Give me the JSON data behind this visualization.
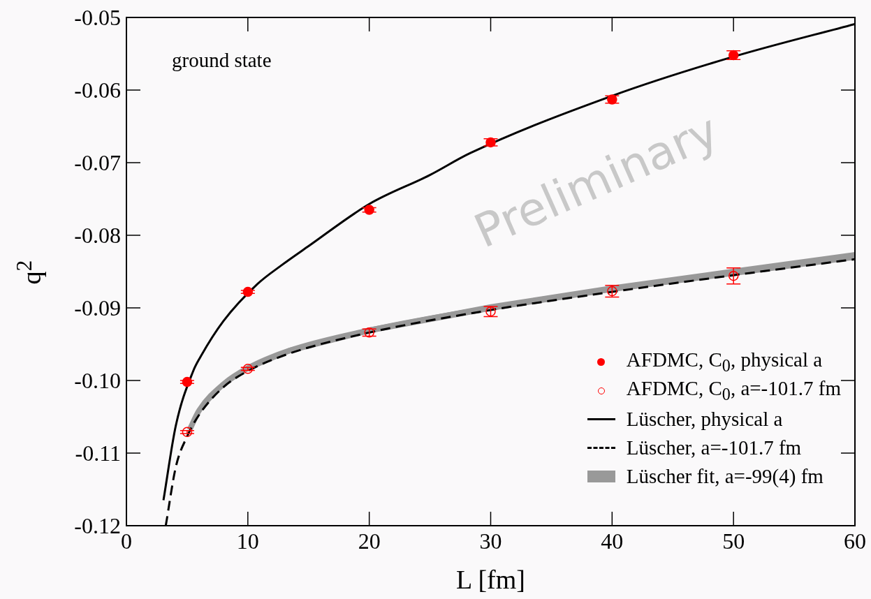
{
  "chart_data": {
    "type": "scatter",
    "xlabel": "L [fm]",
    "ylabel": "q$^{2}$",
    "annotations": [
      "ground state",
      "Preliminary"
    ],
    "xlim": [
      0,
      60
    ],
    "xticks": [
      0,
      10,
      20,
      30,
      40,
      50,
      60
    ],
    "ylim": [
      -0.12,
      -0.05
    ],
    "yticks": [
      -0.12,
      -0.11,
      {
        "value": -0.1,
        "label": "-0.10"
      },
      -0.09,
      -0.08,
      -0.07,
      -0.06,
      -0.05
    ],
    "grid": false,
    "legend": "bottom right",
    "series": [
      {
        "name": "AFDMC, C$_{0}$, physical a",
        "marker": "circle",
        "color": "#ff0000",
        "x": [
          5,
          10,
          20,
          30,
          40,
          50
        ],
        "values": [
          -0.1002,
          -0.0878,
          -0.0765,
          -0.0672,
          -0.0613,
          -0.0552
        ],
        "errors": [
          0.0002,
          0.0002,
          0.0003,
          0.0005,
          0.0005,
          0.0006
        ]
      },
      {
        "name": "AFDMC, C$_{0}$, a=-101.7 fm",
        "marker": "circle-open",
        "color": "#ff0000",
        "x": [
          5,
          10,
          20,
          30,
          40,
          50
        ],
        "values": [
          -0.1071,
          -0.0984,
          -0.0934,
          -0.0905,
          -0.0877,
          -0.0856
        ],
        "errors": [
          0.0002,
          0.0002,
          0.0005,
          0.0007,
          0.0008,
          0.0011
        ]
      },
      {
        "name": "Lüscher, physical a",
        "type": "line",
        "marker": "none",
        "line_style": "solid",
        "color": "#000000",
        "x": [
          3.05,
          4.07,
          5.5,
          6.08,
          8,
          10.8,
          12.8,
          15,
          20,
          25,
          28.3,
          40,
          50,
          60
        ],
        "values": [
          -0.1165,
          -0.1062,
          -0.0987,
          -0.0968,
          -0.0918,
          -0.0867,
          -0.0841,
          -0.0815,
          -0.0757,
          -0.0717,
          -0.0687,
          -0.0608,
          -0.0554,
          -0.0509
        ]
      },
      {
        "name": "Lüscher, a=-101.7 fm",
        "type": "line",
        "marker": "none",
        "line_style": "dashed",
        "color": "#000000",
        "x": [
          3.24,
          4.07,
          5,
          6.08,
          8,
          10,
          13.4,
          20,
          30,
          40,
          50,
          60
        ],
        "values": [
          -0.12,
          -0.1119,
          -0.1077,
          -0.1045,
          -0.1009,
          -0.0987,
          -0.0963,
          -0.0934,
          -0.0903,
          -0.0878,
          -0.0855,
          -0.0833
        ]
      },
      {
        "name": "Lüscher fit, a=-99(4) fm",
        "type": "line",
        "marker": "none",
        "line_style": "solid",
        "color": "#999999",
        "x": [
          5.2,
          6,
          8,
          10,
          13.4,
          20,
          30,
          40,
          50,
          60
        ],
        "values": [
          -0.1068,
          -0.1041,
          -0.1005,
          -0.0983,
          -0.0959,
          -0.0931,
          -0.09,
          -0.0874,
          -0.0851,
          -0.0829
        ],
        "lower": [
          -0.1073,
          -0.1045,
          -0.1009,
          -0.0987,
          -0.0963,
          -0.0935,
          -0.0904,
          -0.0878,
          -0.0856,
          -0.0834
        ],
        "upper": [
          -0.1063,
          -0.1037,
          -0.1001,
          -0.0979,
          -0.0955,
          -0.0927,
          -0.0895,
          -0.0869,
          -0.0846,
          -0.0823
        ]
      }
    ]
  }
}
